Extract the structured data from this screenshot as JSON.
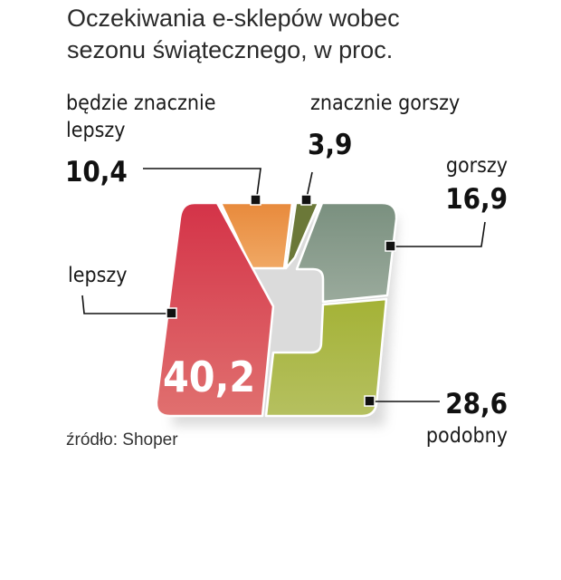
{
  "chart_data": {
    "type": "pie",
    "title": "Oczekiwania e-sklepów wobec sezonu świątecznego, w proc.",
    "title_lines": [
      "Oczekiwania e-sklepów wobec",
      "sezonu świątecznego, w proc."
    ],
    "source": "źródło: Shoper",
    "series": [
      {
        "label_lines": [
          "będzie znacznie",
          "lepszy"
        ],
        "value": 10.4,
        "value_text": "10,4",
        "color": "#eb9448"
      },
      {
        "label_lines": [
          "znacznie gorszy"
        ],
        "value": 3.9,
        "value_text": "3,9",
        "color": "#6b7838"
      },
      {
        "label_lines": [
          "gorszy"
        ],
        "value": 16.9,
        "value_text": "16,9",
        "color": "#83998a"
      },
      {
        "label_lines": [
          "podobny"
        ],
        "value": 28.6,
        "value_text": "28,6",
        "color": "#a9b73e"
      },
      {
        "label_lines": [
          "lepszy"
        ],
        "value": 40.2,
        "value_text": "40,2",
        "color": "#d9434f"
      }
    ]
  }
}
